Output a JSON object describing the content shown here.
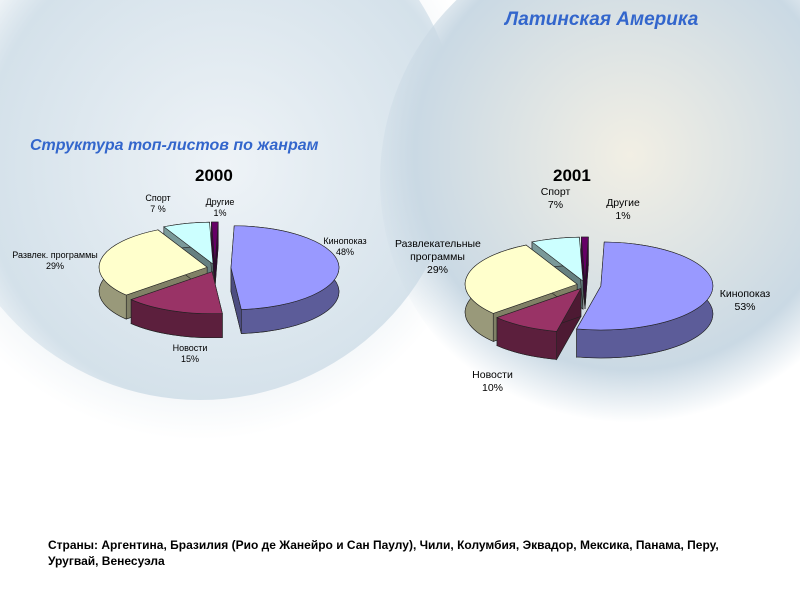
{
  "title": "Латинская Америка",
  "subtitle": "Структура топ-листов по жанрам",
  "footnote": "Страны: Аргентина, Бразилия (Рио де Жанейро и Сан Паулу), Чили, Колумбия, Эквадор, Мексика, Панама, Перу, Уругвай, Венесуэла",
  "chart_data": [
    {
      "type": "pie",
      "title": "2000",
      "categories": [
        "Кинопоказ",
        "Новости",
        "Развлек. программы",
        "Спорт",
        "Другие"
      ],
      "values": [
        48,
        15,
        29,
        7,
        1
      ],
      "value_labels": [
        "48%",
        "15%",
        "29%",
        "7 %",
        "1%"
      ],
      "colors": [
        "#9999ff",
        "#993366",
        "#ffffcc",
        "#ccffff",
        "#660066"
      ]
    },
    {
      "type": "pie",
      "title": "2001",
      "categories": [
        "Кинопоказ",
        "Новости",
        "Развлекательные программы",
        "Спорт",
        "Другие"
      ],
      "values": [
        53,
        10,
        29,
        7,
        1
      ],
      "value_labels": [
        "53%",
        "10%",
        "29%",
        "7%",
        "1%"
      ],
      "colors": [
        "#9999ff",
        "#993366",
        "#ffffcc",
        "#ccffff",
        "#660066"
      ]
    }
  ]
}
